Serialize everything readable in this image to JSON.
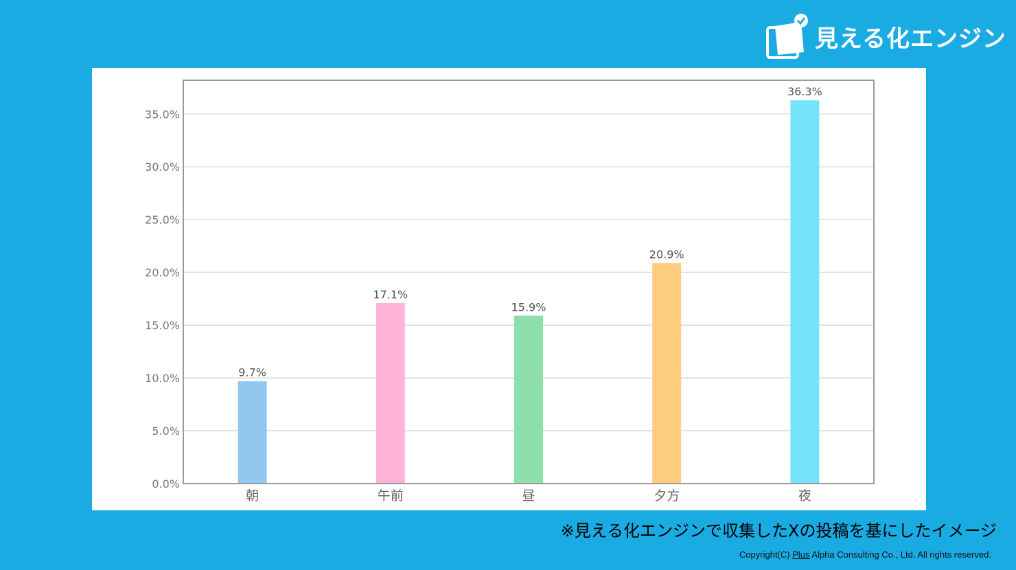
{
  "brand": {
    "name": "見える化エンジン",
    "logo_icon": "document-check-icon"
  },
  "footnote": "※見える化エンジンで収集したXの投稿を基にしたイメージ",
  "copyright": {
    "prefix": "Copyright(C) ",
    "plus": "Plus",
    "suffix": " Alpha Consulting Co., Ltd. All rights reserved."
  },
  "colors": {
    "background": "#1aabe3",
    "panel": "#ffffff"
  },
  "chart_data": {
    "type": "bar",
    "categories": [
      "朝",
      "午前",
      "昼",
      "夕方",
      "夜"
    ],
    "values": [
      9.7,
      17.1,
      15.9,
      20.9,
      36.3
    ],
    "value_labels": [
      "9.7%",
      "17.1%",
      "15.9%",
      "20.9%",
      "36.3%"
    ],
    "bar_colors": [
      "#90c8ee",
      "#ffb3d9",
      "#8edfab",
      "#ffcd80",
      "#74e4fd"
    ],
    "ylim": [
      0,
      38.2
    ],
    "yticks": [
      0,
      5,
      10,
      15,
      20,
      25,
      30,
      35
    ],
    "ytick_labels": [
      "0.0%",
      "5.0%",
      "10.0%",
      "15.0%",
      "20.0%",
      "25.0%",
      "30.0%",
      "35.0%"
    ],
    "grid": true,
    "legend": "none"
  }
}
